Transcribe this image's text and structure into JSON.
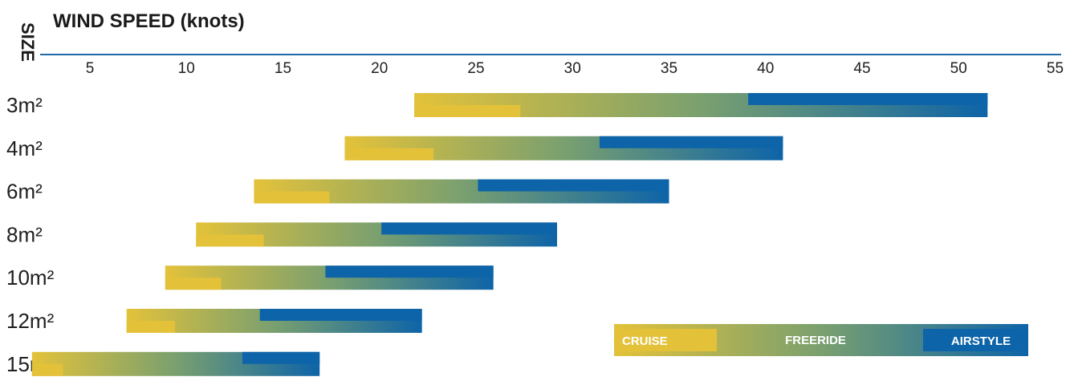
{
  "chart_data": {
    "type": "bar",
    "title": "WIND SPEED (knots)",
    "size_label": "SIZE",
    "x_ticks": [
      5,
      10,
      15,
      20,
      25,
      30,
      35,
      40,
      45,
      50,
      55
    ],
    "xlim": [
      2,
      55
    ],
    "categories": [
      "3m²",
      "4m²",
      "6m²",
      "8m²",
      "10m²",
      "12m²",
      "15m²"
    ],
    "series": [
      {
        "name": "CRUISE",
        "ranges": [
          [
            21.8,
            27.3
          ],
          [
            18.2,
            22.8
          ],
          [
            13.5,
            17.4
          ],
          [
            10.5,
            14.0
          ],
          [
            8.9,
            11.8
          ],
          [
            6.9,
            9.4
          ],
          [
            2.0,
            3.6
          ]
        ]
      },
      {
        "name": "FREERIDE",
        "ranges": [
          [
            21.8,
            51.5
          ],
          [
            18.2,
            40.9
          ],
          [
            13.5,
            35.0
          ],
          [
            10.5,
            29.2
          ],
          [
            8.9,
            25.9
          ],
          [
            6.9,
            22.2
          ],
          [
            2.0,
            16.9
          ]
        ]
      },
      {
        "name": "AIRSTYLE",
        "ranges": [
          [
            39.1,
            51.5
          ],
          [
            31.4,
            40.9
          ],
          [
            25.1,
            35.0
          ],
          [
            20.1,
            29.2
          ],
          [
            17.2,
            25.9
          ],
          [
            13.8,
            22.2
          ],
          [
            12.9,
            16.9
          ]
        ]
      }
    ],
    "legend": {
      "placement": "bottom-right",
      "items": [
        "CRUISE",
        "FREERIDE",
        "AIRSTYLE"
      ]
    },
    "colors": {
      "cruise": "#e3c23a",
      "freeride": "#7aa06f",
      "airstyle": "#0e64a8",
      "axis": "#1f6aa8"
    },
    "grid": false
  }
}
